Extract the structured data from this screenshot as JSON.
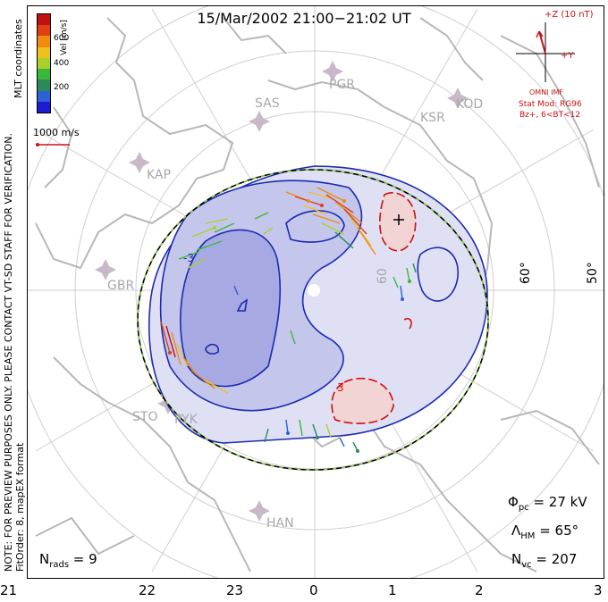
{
  "title": "15/Mar/2002 21:00−21:02 UT",
  "colorbar": {
    "label": "Vel [m/s]",
    "ticks": [
      "600",
      "400",
      "200"
    ],
    "colors": [
      "#1c1cd0",
      "#2a62d8",
      "#2a8a5a",
      "#3ab83a",
      "#a8d22a",
      "#f0c020",
      "#f08a10",
      "#e04010",
      "#c01010"
    ],
    "scale_label": "1000 m/s"
  },
  "side_text": {
    "coords": "MLT coordinates",
    "note": "NOTE: FOR PREVIEW PURPOSES ONLY. PLEASE CONTACT VT-SD STAFF FOR VERIFICATION.",
    "fit": "FitOrder: 8,  mapEX format"
  },
  "imf": {
    "z_label": "+Z (10 nT)",
    "y_label": "+Y",
    "source": "OMNI IMF",
    "model": "Stat Mod: RG96",
    "condition": "Bz+, 6<BT<12"
  },
  "radars": [
    "PGR",
    "SAS",
    "KSR",
    "KOD",
    "KAP",
    "GBR",
    "STO",
    "PYK",
    "HAN"
  ],
  "latitude_labels": [
    "60°",
    "50°",
    "60"
  ],
  "contour_labels": [
    "-3",
    "3"
  ],
  "stats": {
    "phi_pc": "Φpc = 27 kV",
    "lambda_hm": "ΛHM = 65°",
    "n_vc": "Nvc = 207",
    "n_rads": "Nrads = 9"
  },
  "stats_parts": {
    "phi_sym": "Φ",
    "phi_sub": "pc",
    "phi_val": " = 27 kV",
    "lam_sym": "Λ",
    "lam_sub": "HM",
    "lam_val": " = 65°",
    "nvc_sym": "N",
    "nvc_sub": "vc",
    "nvc_val": " = 207",
    "nrads_sym": "N",
    "nrads_sub": "rads",
    "nrads_val": " = 9"
  },
  "mlt_axis": [
    "21",
    "22",
    "23",
    "0",
    "1",
    "2",
    "3"
  ]
}
